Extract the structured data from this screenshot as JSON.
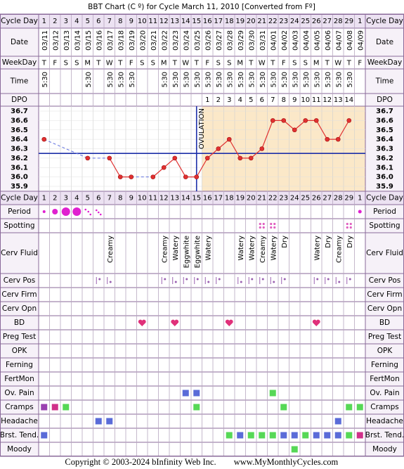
{
  "title": "BBT Chart (C º) for Cycle March 11, 2010  [Converted from Fº]",
  "top_rows": [
    "Cycle Day",
    "Date",
    "WeekDay",
    "Time",
    "DPO"
  ],
  "bottom_rows": [
    "Cycle Day",
    "Period",
    "Spotting",
    "Cerv Fluid",
    "Cerv Pos",
    "Cerv Firm",
    "Cerv Opn",
    "BD",
    "Preg Test",
    "OPK",
    "Ferning",
    "FertMon",
    "Ov. Pain",
    "Cramps",
    "Headache",
    "Brst. Tend.",
    "Moody"
  ],
  "cycle_days": [
    1,
    2,
    3,
    4,
    5,
    6,
    7,
    8,
    9,
    10,
    11,
    12,
    13,
    14,
    15,
    16,
    17,
    18,
    19,
    20,
    21,
    22,
    23,
    24,
    25,
    26,
    27,
    28,
    29,
    1
  ],
  "dates": [
    "03/11",
    "03/12",
    "03/13",
    "03/14",
    "03/15",
    "03/16",
    "03/17",
    "03/18",
    "03/19",
    "03/20",
    "03/21",
    "03/22",
    "03/23",
    "03/24",
    "03/25",
    "03/26",
    "03/27",
    "03/28",
    "03/29",
    "03/30",
    "03/31",
    "04/01",
    "04/02",
    "04/03",
    "04/04",
    "04/05",
    "04/06",
    "04/07",
    "04/08",
    "04/09"
  ],
  "weekdays": [
    "T",
    "F",
    "S",
    "S",
    "M",
    "T",
    "W",
    "T",
    "F",
    "S",
    "S",
    "M",
    "T",
    "W",
    "T",
    "F",
    "S",
    "S",
    "M",
    "T",
    "W",
    "T",
    "F",
    "S",
    "S",
    "M",
    "T",
    "W",
    "T",
    "F"
  ],
  "times": [
    "5:30",
    null,
    null,
    null,
    "5:30",
    null,
    "5:30",
    "5:30",
    "5:30",
    null,
    null,
    "5:30",
    "5:30",
    "5:30",
    "5:30",
    "5:30",
    "5:30",
    "5:30",
    "5:30",
    "5:30",
    "5:30",
    "5:30",
    "5:30",
    "5:30",
    "5:30",
    "5:30",
    "5:30",
    "5:30",
    "5:30",
    null
  ],
  "dpo": [
    null,
    null,
    null,
    null,
    null,
    null,
    null,
    null,
    null,
    null,
    null,
    null,
    null,
    null,
    null,
    1,
    2,
    3,
    4,
    5,
    6,
    7,
    8,
    9,
    10,
    11,
    12,
    13,
    14,
    null
  ],
  "chart_data": {
    "type": "line",
    "ylim": [
      35.9,
      36.7
    ],
    "yticks": [
      36.7,
      36.6,
      36.5,
      36.4,
      36.3,
      36.2,
      36.1,
      {
        "value": 36,
        "label": "36.0"
      },
      35.9
    ],
    "series": [
      {
        "color": "#e03030",
        "values": [
          36.4,
          null,
          null,
          null,
          36.2,
          null,
          36.2,
          36,
          36,
          null,
          36,
          36.1,
          36.2,
          36,
          36,
          36.2,
          36.3,
          36.4,
          36.2,
          36.2,
          36.3,
          36.6,
          36.6,
          36.5,
          36.6,
          36.6,
          36.4,
          36.4,
          36.6,
          null
        ]
      }
    ],
    "coverline": 36.25,
    "ovulation_label": "OVULATION"
  },
  "cervical_fluid": [
    null,
    null,
    null,
    null,
    null,
    null,
    "Creamy",
    null,
    null,
    null,
    null,
    "Creamy",
    "Watery",
    "Eggwhite",
    "Eggwhite",
    "Watery",
    null,
    null,
    "Watery",
    "Watery",
    "Creamy",
    "Watery",
    "Dry",
    null,
    null,
    "Watery",
    "Dry",
    "Creamy",
    "Dry",
    null
  ],
  "footer": {
    "copyright": "Copyright © 2003-2024 bInfinity Web Inc.",
    "url": "www.MyMonthlyCycles.com"
  }
}
